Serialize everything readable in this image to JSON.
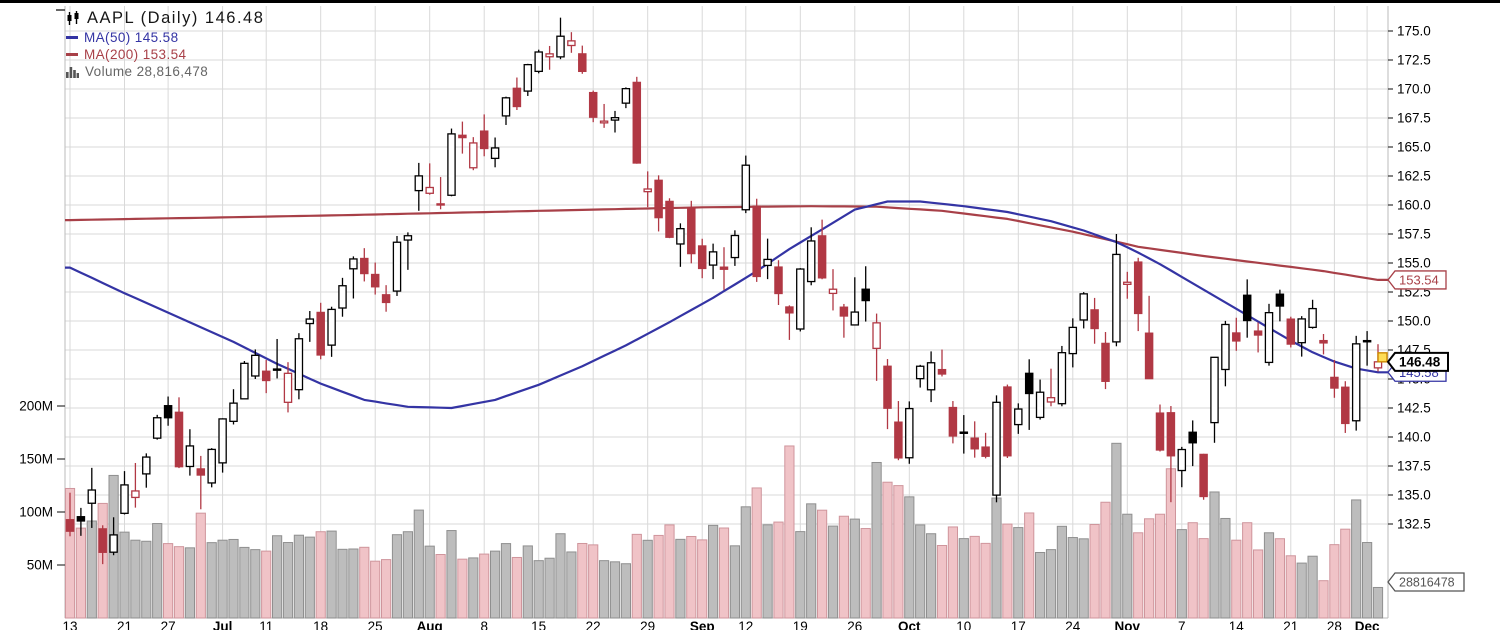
{
  "header": {
    "title": "AAPL (Daily) 146.48",
    "ma50_label": "MA(50) 145.58",
    "ma200_label": "MA(200) 153.54",
    "volume_label": "Volume 28,816,478"
  },
  "colors": {
    "candle_up_outline": "#000000",
    "candle_down": "#b13844",
    "ma50_line": "#3434a4",
    "ma200_line": "#a84048",
    "volume_up_fill": "#bdbdbd",
    "volume_up_stroke": "#8f8f8f",
    "volume_down_fill": "#f0c3c7",
    "volume_down_stroke": "#cf959c",
    "grid": "#d9d9d9",
    "axis_text": "#000000",
    "volume_text": "#666666",
    "volume_tag": "#555555",
    "marker_fill": "#ffdd55",
    "marker_stroke": "#cc8800"
  },
  "axes": {
    "volume_ticks": [
      {
        "label": "200M",
        "value": 200
      },
      {
        "label": "150M",
        "value": 150
      },
      {
        "label": "100M",
        "value": 100
      },
      {
        "label": "50M",
        "value": 50
      }
    ],
    "x_ticks": [
      [
        0,
        "13"
      ],
      [
        5,
        "21"
      ],
      [
        9,
        "27"
      ],
      [
        14,
        "Jul"
      ],
      [
        18,
        "11"
      ],
      [
        23,
        "18"
      ],
      [
        28,
        "25"
      ],
      [
        33,
        "Aug"
      ],
      [
        38,
        "8"
      ],
      [
        43,
        "15"
      ],
      [
        48,
        "22"
      ],
      [
        53,
        "29"
      ],
      [
        58,
        "Sep"
      ],
      [
        62,
        "12"
      ],
      [
        67,
        "19"
      ],
      [
        72,
        "26"
      ],
      [
        77,
        "Oct"
      ],
      [
        82,
        "10"
      ],
      [
        87,
        "17"
      ],
      [
        92,
        "24"
      ],
      [
        97,
        "Nov"
      ],
      [
        102,
        "7"
      ],
      [
        107,
        "14"
      ],
      [
        112,
        "21"
      ],
      [
        116,
        "28"
      ],
      [
        119,
        "Dec"
      ]
    ]
  },
  "tags": {
    "ma200": "153.54",
    "last": "146.48",
    "ma50": "145.58",
    "volume": "28816478"
  },
  "chart_data": {
    "type": "candlestick",
    "symbol": "AAPL",
    "period": "Daily",
    "last_price": 146.48,
    "ma50": 145.58,
    "ma200": 153.54,
    "volume": 28816478,
    "price_axis": {
      "min": 132.5,
      "max": 175.0,
      "step": 2.5
    },
    "volume_axis_millions": [
      50,
      100,
      150,
      200
    ],
    "columns": [
      "date",
      "open",
      "high",
      "low",
      "close",
      "volume_millions"
    ],
    "candles": [
      [
        "Jun 13",
        132.87,
        135.2,
        131.44,
        131.88,
        122.2
      ],
      [
        "Jun 14",
        133.13,
        133.89,
        131.48,
        132.76,
        84.8
      ],
      [
        "Jun 15",
        134.29,
        137.34,
        132.16,
        135.43,
        91.5
      ],
      [
        "Jun 16",
        132.08,
        132.39,
        129.04,
        130.06,
        108.1
      ],
      [
        "Jun 17",
        130.07,
        133.08,
        129.81,
        131.56,
        134.5
      ],
      [
        "Jun 21",
        133.42,
        137.06,
        133.32,
        135.87,
        81.0
      ],
      [
        "Jun 22",
        134.79,
        137.76,
        133.91,
        135.35,
        73.4
      ],
      [
        "Jun 23",
        136.82,
        138.59,
        135.63,
        138.27,
        72.4
      ],
      [
        "Jun 24",
        139.9,
        141.91,
        139.77,
        141.66,
        89.1
      ],
      [
        "Jun 27",
        142.7,
        143.49,
        140.97,
        141.66,
        70.2
      ],
      [
        "Jun 28",
        142.13,
        143.42,
        137.32,
        137.44,
        67.3
      ],
      [
        "Jun 29",
        137.46,
        140.67,
        136.67,
        139.23,
        66.2
      ],
      [
        "Jun 30",
        137.25,
        138.37,
        133.77,
        136.72,
        98.9
      ],
      [
        "Jul 1",
        136.04,
        139.04,
        135.66,
        138.93,
        71.1
      ],
      [
        "Jul 5",
        137.77,
        141.61,
        136.93,
        141.56,
        73.4
      ],
      [
        "Jul 6",
        141.35,
        144.12,
        141.08,
        142.92,
        74.1
      ],
      [
        "Jul 7",
        143.29,
        146.55,
        143.28,
        146.35,
        66.6
      ],
      [
        "Jul 8",
        145.26,
        147.55,
        145.0,
        147.04,
        64.5
      ],
      [
        "Jul 11",
        145.67,
        146.64,
        143.78,
        144.87,
        63.1
      ],
      [
        "Jul 12",
        145.76,
        148.45,
        145.05,
        145.86,
        77.6
      ],
      [
        "Jul 13",
        142.99,
        146.45,
        142.12,
        145.49,
        71.2
      ],
      [
        "Jul 14",
        144.08,
        148.95,
        143.25,
        148.47,
        78.1
      ],
      [
        "Jul 15",
        149.78,
        150.86,
        148.2,
        150.17,
        76.3
      ],
      [
        "Jul 18",
        150.74,
        151.57,
        146.7,
        147.07,
        81.4
      ],
      [
        "Jul 19",
        147.92,
        151.23,
        146.91,
        151.0,
        82.0
      ],
      [
        "Jul 20",
        151.12,
        153.72,
        150.37,
        153.04,
        64.8
      ],
      [
        "Jul 21",
        154.5,
        155.57,
        151.94,
        155.35,
        65.1
      ],
      [
        "Jul 22",
        155.39,
        156.28,
        153.41,
        154.09,
        66.7
      ],
      [
        "Jul 25",
        154.01,
        155.04,
        152.28,
        152.95,
        53.6
      ],
      [
        "Jul 26",
        152.26,
        153.09,
        150.8,
        151.6,
        55.1
      ],
      [
        "Jul 27",
        152.58,
        157.33,
        152.16,
        156.79,
        78.6
      ],
      [
        "Jul 28",
        156.98,
        157.64,
        154.41,
        157.35,
        81.4
      ],
      [
        "Jul 29",
        161.24,
        163.63,
        159.5,
        162.51,
        101.8
      ],
      [
        "Aug 1",
        161.01,
        163.59,
        160.89,
        161.51,
        67.8
      ],
      [
        "Aug 2",
        160.1,
        162.41,
        159.63,
        160.01,
        59.9
      ],
      [
        "Aug 3",
        160.84,
        166.59,
        160.75,
        166.13,
        82.5
      ],
      [
        "Aug 4",
        166.01,
        167.19,
        164.43,
        165.81,
        55.5
      ],
      [
        "Aug 5",
        163.21,
        165.85,
        163.0,
        165.35,
        56.7
      ],
      [
        "Aug 8",
        166.37,
        167.81,
        164.2,
        164.87,
        60.3
      ],
      [
        "Aug 9",
        164.02,
        165.82,
        163.25,
        164.92,
        63.1
      ],
      [
        "Aug 10",
        167.68,
        169.34,
        166.9,
        169.24,
        70.2
      ],
      [
        "Aug 11",
        170.06,
        170.99,
        168.19,
        168.49,
        57.1
      ],
      [
        "Aug 12",
        169.82,
        172.17,
        169.4,
        172.1,
        68.0
      ],
      [
        "Aug 15",
        171.52,
        173.39,
        171.35,
        173.19,
        54.1
      ],
      [
        "Aug 16",
        172.78,
        173.71,
        171.66,
        173.03,
        56.4
      ],
      [
        "Aug 17",
        172.77,
        176.15,
        172.57,
        174.55,
        79.5
      ],
      [
        "Aug 18",
        173.75,
        174.9,
        173.12,
        174.15,
        62.3
      ],
      [
        "Aug 19",
        173.03,
        173.74,
        171.31,
        171.52,
        70.3
      ],
      [
        "Aug 22",
        169.69,
        169.86,
        167.14,
        167.57,
        69.0
      ],
      [
        "Aug 23",
        167.08,
        168.71,
        166.65,
        167.23,
        54.1
      ],
      [
        "Aug 24",
        167.32,
        168.11,
        166.25,
        167.53,
        53.0
      ],
      [
        "Aug 25",
        168.78,
        170.14,
        168.35,
        170.03,
        51.2
      ],
      [
        "Aug 26",
        170.57,
        171.05,
        163.56,
        163.62,
        78.9
      ],
      [
        "Aug 29",
        161.15,
        162.9,
        159.82,
        161.38,
        73.3
      ],
      [
        "Aug 30",
        162.13,
        162.56,
        157.72,
        158.91,
        77.9
      ],
      [
        "Aug 31",
        160.31,
        160.58,
        157.14,
        157.22,
        87.8
      ],
      [
        "Sep 1",
        156.64,
        158.42,
        154.67,
        157.96,
        74.2
      ],
      [
        "Sep 2",
        159.75,
        160.36,
        154.97,
        155.81,
        76.9
      ],
      [
        "Sep 6",
        156.47,
        157.09,
        153.69,
        154.53,
        73.7
      ],
      [
        "Sep 7",
        154.82,
        156.67,
        153.61,
        155.96,
        87.4
      ],
      [
        "Sep 8",
        154.64,
        156.36,
        152.68,
        154.46,
        84.9
      ],
      [
        "Sep 9",
        155.47,
        157.82,
        154.75,
        157.37,
        68.1
      ],
      [
        "Sep 12",
        159.59,
        164.26,
        159.3,
        163.43,
        104.9
      ],
      [
        "Sep 13",
        159.9,
        160.54,
        153.37,
        153.84,
        122.7
      ],
      [
        "Sep 14",
        154.79,
        157.1,
        153.61,
        155.31,
        87.9
      ],
      [
        "Sep 15",
        154.65,
        155.24,
        151.38,
        152.37,
        90.5
      ],
      [
        "Sep 16",
        151.21,
        151.35,
        148.37,
        150.7,
        162.3
      ],
      [
        "Sep 19",
        149.31,
        154.56,
        149.1,
        154.48,
        81.5
      ],
      [
        "Sep 20",
        153.4,
        158.08,
        153.08,
        156.9,
        107.7
      ],
      [
        "Sep 21",
        157.34,
        158.74,
        153.6,
        153.72,
        101.7
      ],
      [
        "Sep 22",
        152.38,
        154.47,
        150.91,
        152.74,
        86.7
      ],
      [
        "Sep 23",
        151.19,
        151.47,
        148.56,
        150.43,
        96.0
      ],
      [
        "Sep 26",
        149.66,
        153.77,
        149.64,
        150.77,
        93.3
      ],
      [
        "Sep 27",
        152.74,
        154.72,
        149.95,
        151.76,
        84.4
      ],
      [
        "Sep 28",
        147.64,
        150.64,
        144.84,
        149.84,
        146.7
      ],
      [
        "Sep 29",
        146.1,
        146.72,
        140.68,
        142.48,
        128.1
      ],
      [
        "Sep 30",
        141.28,
        143.1,
        138.0,
        138.2,
        124.9
      ],
      [
        "Oct 3",
        138.21,
        143.07,
        137.69,
        142.45,
        114.3
      ],
      [
        "Oct 4",
        145.03,
        146.22,
        144.26,
        146.1,
        87.8
      ],
      [
        "Oct 5",
        144.07,
        147.38,
        143.01,
        146.4,
        79.5
      ],
      [
        "Oct 6",
        145.81,
        147.54,
        145.22,
        145.43,
        68.4
      ],
      [
        "Oct 7",
        142.54,
        143.1,
        139.45,
        140.09,
        85.9
      ],
      [
        "Oct 10",
        140.42,
        141.89,
        138.57,
        140.42,
        74.9
      ],
      [
        "Oct 11",
        139.9,
        141.35,
        138.22,
        138.98,
        77.0
      ],
      [
        "Oct 12",
        139.13,
        140.36,
        138.16,
        138.34,
        70.4
      ],
      [
        "Oct 13",
        134.99,
        143.59,
        134.37,
        142.99,
        113.2
      ],
      [
        "Oct 14",
        144.31,
        144.52,
        138.19,
        138.38,
        88.6
      ],
      [
        "Oct 17",
        141.07,
        142.9,
        140.27,
        142.41,
        85.3
      ],
      [
        "Oct 18",
        145.49,
        146.7,
        140.61,
        143.75,
        99.1
      ],
      [
        "Oct 19",
        141.69,
        144.95,
        141.5,
        143.86,
        61.8
      ],
      [
        "Oct 20",
        143.02,
        145.89,
        142.65,
        143.39,
        64.5
      ],
      [
        "Oct 21",
        142.87,
        147.85,
        142.65,
        147.27,
        86.5
      ],
      [
        "Oct 24",
        147.19,
        150.23,
        146.0,
        149.45,
        75.9
      ],
      [
        "Oct 25",
        150.09,
        152.49,
        149.36,
        152.34,
        74.7
      ],
      [
        "Oct 26",
        150.96,
        151.99,
        148.04,
        149.35,
        88.2
      ],
      [
        "Oct 27",
        148.07,
        149.05,
        144.13,
        144.8,
        109.2
      ],
      [
        "Oct 28",
        148.2,
        157.5,
        147.82,
        155.74,
        164.8
      ],
      [
        "Oct 31",
        153.16,
        154.24,
        151.92,
        153.34,
        97.9
      ],
      [
        "Nov 1",
        155.08,
        155.45,
        149.13,
        150.65,
        80.4
      ],
      [
        "Nov 2",
        148.95,
        152.17,
        145.0,
        145.03,
        93.6
      ],
      [
        "Nov 3",
        142.06,
        142.8,
        138.75,
        138.88,
        97.9
      ],
      [
        "Nov 4",
        142.09,
        142.67,
        134.38,
        138.38,
        140.8
      ],
      [
        "Nov 7",
        137.11,
        139.15,
        135.67,
        138.92,
        83.4
      ],
      [
        "Nov 8",
        140.41,
        141.43,
        137.49,
        139.5,
        89.9
      ],
      [
        "Nov 9",
        138.5,
        138.55,
        134.59,
        134.87,
        74.9
      ],
      [
        "Nov 10",
        141.24,
        146.87,
        139.5,
        146.87,
        118.9
      ],
      [
        "Nov 11",
        145.82,
        150.01,
        144.37,
        149.7,
        93.9
      ],
      [
        "Nov 14",
        148.97,
        150.28,
        147.43,
        148.28,
        73.4
      ],
      [
        "Nov 15",
        152.22,
        153.59,
        148.56,
        150.04,
        89.9
      ],
      [
        "Nov 16",
        149.13,
        149.87,
        147.29,
        148.79,
        64.2
      ],
      [
        "Nov 17",
        146.43,
        151.48,
        146.15,
        150.72,
        80.4
      ],
      [
        "Nov 18",
        152.31,
        152.7,
        149.97,
        151.29,
        74.8
      ],
      [
        "Nov 21",
        150.16,
        150.37,
        147.72,
        148.01,
        58.7
      ],
      [
        "Nov 22",
        148.13,
        150.42,
        146.93,
        150.18,
        51.8
      ],
      [
        "Nov 23",
        149.45,
        151.83,
        149.34,
        151.07,
        58.3
      ],
      [
        "Nov 25",
        148.31,
        148.88,
        147.12,
        148.11,
        35.2
      ],
      [
        "Nov 28",
        145.14,
        146.64,
        143.38,
        144.22,
        69.2
      ],
      [
        "Nov 29",
        144.29,
        144.81,
        140.35,
        141.17,
        83.8
      ],
      [
        "Nov 30",
        141.4,
        148.72,
        140.55,
        148.03,
        111.4
      ],
      [
        "Dec 1",
        148.21,
        149.13,
        146.15,
        148.31,
        71.2
      ],
      [
        "Dec 2",
        145.96,
        148.0,
        145.65,
        146.48,
        28.8
      ]
    ],
    "ma50_points": [
      [
        0,
        154.6
      ],
      [
        5,
        152.4
      ],
      [
        10,
        150.3
      ],
      [
        15,
        148.2
      ],
      [
        19,
        146.3
      ],
      [
        23,
        144.6
      ],
      [
        27,
        143.2
      ],
      [
        31,
        142.6
      ],
      [
        35,
        142.5
      ],
      [
        39,
        143.2
      ],
      [
        43,
        144.5
      ],
      [
        47,
        146.1
      ],
      [
        51,
        147.9
      ],
      [
        55,
        149.9
      ],
      [
        59,
        152.0
      ],
      [
        63,
        154.3
      ],
      [
        66,
        156.2
      ],
      [
        69,
        157.9
      ],
      [
        72,
        159.6
      ],
      [
        75,
        160.3
      ],
      [
        78,
        160.3
      ],
      [
        82,
        159.9
      ],
      [
        86,
        159.4
      ],
      [
        90,
        158.6
      ],
      [
        93,
        157.8
      ],
      [
        96,
        156.8
      ],
      [
        98,
        155.9
      ],
      [
        100,
        154.9
      ],
      [
        102,
        153.8
      ],
      [
        104,
        152.7
      ],
      [
        106,
        151.6
      ],
      [
        108,
        150.5
      ],
      [
        110,
        149.4
      ],
      [
        112,
        148.3
      ],
      [
        114,
        147.3
      ],
      [
        116,
        146.5
      ],
      [
        118,
        145.9
      ],
      [
        120,
        145.58
      ]
    ],
    "ma200_points": [
      [
        0,
        158.7
      ],
      [
        12,
        158.9
      ],
      [
        24,
        159.1
      ],
      [
        36,
        159.35
      ],
      [
        48,
        159.6
      ],
      [
        58,
        159.8
      ],
      [
        68,
        159.9
      ],
      [
        74,
        159.85
      ],
      [
        80,
        159.5
      ],
      [
        86,
        158.8
      ],
      [
        92,
        157.7
      ],
      [
        98,
        156.4
      ],
      [
        104,
        155.6
      ],
      [
        110,
        154.9
      ],
      [
        115,
        154.3
      ],
      [
        120,
        153.54
      ]
    ]
  }
}
